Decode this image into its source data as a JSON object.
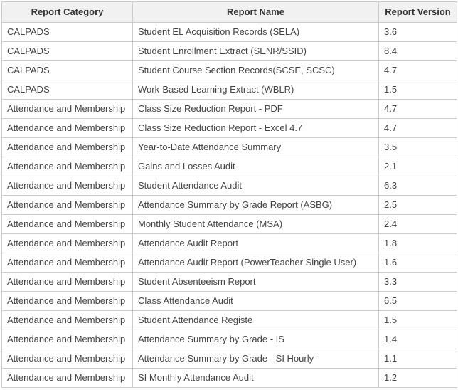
{
  "colors": {
    "border-color": "#cccccc",
    "header-bg": "#f1f1f1",
    "header-text": "#333333",
    "cell-text": "#444444",
    "row-bg": "#ffffff",
    "page-bg": "#ffffff"
  },
  "table": {
    "columns": [
      {
        "label": "Report Category"
      },
      {
        "label": "Report Name"
      },
      {
        "label": "Report Version"
      }
    ],
    "rows": [
      [
        "CALPADS",
        "Student EL Acquisition Records (SELA)",
        "3.6"
      ],
      [
        "CALPADS",
        "Student Enrollment Extract (SENR/SSID)",
        "8.4"
      ],
      [
        "CALPADS",
        "Student Course Section Records(SCSE, SCSC)",
        "4.7"
      ],
      [
        "CALPADS",
        "Work-Based Learning Extract (WBLR)",
        "1.5"
      ],
      [
        "Attendance and Membership",
        "Class Size Reduction Report - PDF",
        "4.7"
      ],
      [
        "Attendance and Membership",
        "Class Size Reduction Report - Excel 4.7",
        "4.7"
      ],
      [
        "Attendance and Membership",
        "Year-to-Date Attendance Summary",
        "3.5"
      ],
      [
        "Attendance and Membership",
        "Gains and Losses Audit",
        "2.1"
      ],
      [
        "Attendance and Membership",
        "Student Attendance Audit",
        "6.3"
      ],
      [
        "Attendance and Membership",
        "Attendance Summary by Grade Report (ASBG)",
        "2.5"
      ],
      [
        "Attendance and Membership",
        "Monthly Student Attendance (MSA)",
        "2.4"
      ],
      [
        "Attendance and Membership",
        "Attendance Audit Report",
        "1.8"
      ],
      [
        "Attendance and Membership",
        "Attendance Audit Report (PowerTeacher Single User)",
        "1.6"
      ],
      [
        "Attendance and Membership",
        "Student Absenteeism Report",
        "3.3"
      ],
      [
        "Attendance and Membership",
        "Class Attendance Audit",
        "6.5"
      ],
      [
        "Attendance and Membership",
        "Student Attendance Registe",
        "1.5"
      ],
      [
        "Attendance and Membership",
        "Attendance Summary by Grade - IS",
        "1.4"
      ],
      [
        "Attendance and Membership",
        "Attendance Summary by Grade - SI Hourly",
        "1.1"
      ],
      [
        "Attendance and Membership",
        "SI Monthly Attendance Audit",
        "1.2"
      ]
    ],
    "cell_names": [
      "report-category-cell",
      "report-name-cell",
      "report-version-cell"
    ]
  }
}
